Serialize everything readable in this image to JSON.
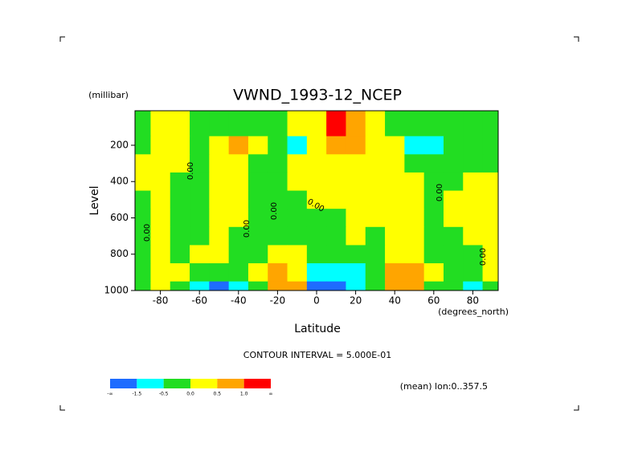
{
  "chart_data": {
    "type": "contourf",
    "title": "VWND_1993-12_NCEP",
    "y_unit": "(millibar)",
    "ylabel": "Level",
    "xlabel": "Latitude",
    "x_unit": "(degrees_north)",
    "footnote": "CONTOUR INTERVAL = 5.000E-01",
    "subnote": "(mean) lon:0..357.5",
    "xlim": [
      -93,
      93
    ],
    "ylim": [
      1000,
      10
    ],
    "xticks": [
      -80,
      -60,
      -40,
      -20,
      0,
      20,
      40,
      60,
      80
    ],
    "yticks": [
      200,
      400,
      600,
      800,
      1000
    ],
    "x": [
      -90,
      -80,
      -70,
      -60,
      -50,
      -40,
      -30,
      -20,
      -10,
      0,
      10,
      20,
      30,
      40,
      50,
      60,
      70,
      80,
      90
    ],
    "y": [
      100,
      200,
      300,
      400,
      500,
      600,
      700,
      800,
      900,
      1000
    ],
    "z": [
      [
        -0.2,
        0.2,
        0.2,
        -0.2,
        -0.2,
        -0.2,
        -0.2,
        -0.2,
        0.2,
        0.2,
        1.5,
        0.7,
        0.2,
        -0.2,
        -0.2,
        -0.2,
        -0.2,
        -0.2,
        -0.2
      ],
      [
        -0.2,
        0.2,
        0.2,
        -0.2,
        0.2,
        0.7,
        0.2,
        -0.2,
        -1,
        0.2,
        0.7,
        0.7,
        0.2,
        0.2,
        -1,
        -1,
        -0.2,
        -0.2,
        -0.2
      ],
      [
        0.2,
        0.2,
        0.2,
        -0.2,
        0.2,
        0.2,
        -0.2,
        -0.2,
        0.2,
        0.2,
        0.2,
        0.2,
        0.2,
        0.2,
        -0.2,
        -0.2,
        -0.2,
        -0.2,
        -0.2
      ],
      [
        0.2,
        0.2,
        -0.2,
        -0.2,
        0.2,
        0.2,
        -0.2,
        -0.2,
        0.2,
        0.2,
        0.2,
        0.2,
        0.2,
        0.2,
        0.2,
        -0.2,
        -0.2,
        0.2,
        0.2
      ],
      [
        -0.2,
        0.2,
        -0.2,
        -0.2,
        0.2,
        0.2,
        -0.2,
        -0.2,
        -0.2,
        0.2,
        0.2,
        0.2,
        0.2,
        0.2,
        0.2,
        -0.2,
        0.2,
        0.2,
        0.2
      ],
      [
        -0.2,
        0.2,
        -0.2,
        -0.2,
        0.2,
        0.2,
        -0.2,
        -0.2,
        -0.2,
        -0.2,
        -0.2,
        0.2,
        0.2,
        0.2,
        0.2,
        -0.2,
        0.2,
        0.2,
        0.2
      ],
      [
        -0.2,
        0.2,
        -0.2,
        -0.2,
        0.2,
        -0.2,
        -0.2,
        -0.2,
        -0.2,
        -0.2,
        -0.2,
        0.2,
        -0.2,
        0.2,
        0.2,
        -0.2,
        -0.2,
        0.2,
        0.2
      ],
      [
        -0.2,
        0.2,
        -0.2,
        0.2,
        0.2,
        -0.2,
        -0.2,
        0.2,
        0.2,
        -0.2,
        -0.2,
        -0.2,
        -0.2,
        0.2,
        0.2,
        -0.2,
        -0.2,
        -0.2,
        0.2
      ],
      [
        -0.2,
        0.2,
        0.2,
        -0.2,
        -0.2,
        -0.2,
        0.2,
        0.7,
        0.2,
        -1,
        -1,
        -1,
        -0.2,
        0.7,
        0.7,
        0.2,
        -0.2,
        -0.2,
        0.2
      ],
      [
        -0.2,
        0.2,
        -0.2,
        -1,
        -2,
        -1,
        -0.2,
        0.7,
        0.7,
        -2,
        -2,
        -1,
        -0.2,
        0.7,
        0.7,
        -0.2,
        -0.2,
        -1,
        -0.2
      ]
    ],
    "levels": [
      -1.5,
      -0.5,
      {
        "value": 0,
        "label": "0.0"
      },
      0.5,
      {
        "value": 1,
        "label": "1.0"
      }
    ],
    "level_ends": [
      "-∞",
      "∞"
    ],
    "colors": [
      "#1e6cff",
      "#00ffff",
      "#22dd22",
      "#ffff00",
      "#ffa500",
      "#ff0000"
    ],
    "contour_labels": [
      "0.00",
      "0.00",
      "0.00",
      "0.00",
      "0.00",
      "0.00",
      "0.00"
    ]
  }
}
